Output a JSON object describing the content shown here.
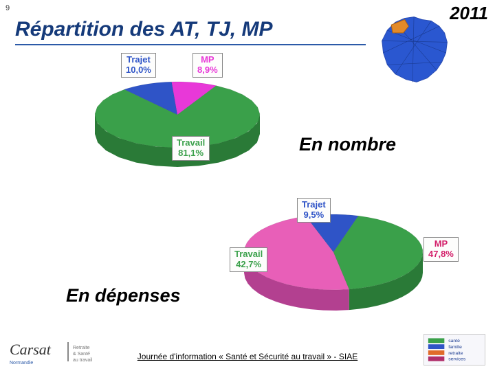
{
  "slide_number": "9",
  "year": "2011",
  "title": "Répartition des AT, TJ, MP",
  "section_labels": {
    "en_nombre": "En nombre",
    "en_depenses": "En dépenses"
  },
  "footer_text": "Journée d'information « Santé et Sécurité au travail » -  SIAE",
  "map": {
    "outline_color": "#2a4db3",
    "fill_color": "#2a57d0",
    "highlight_fill": "#e38a2a"
  },
  "chart1": {
    "type": "pie-3d",
    "title_hidden": true,
    "background_color": "#ffffff",
    "slices": [
      {
        "name": "Trajet",
        "value": 10.0,
        "label": "Trajet",
        "label2": "10,0%",
        "color": "#2f54c7",
        "text_color": "#2f54c7"
      },
      {
        "name": "MP",
        "value": 8.9,
        "label": "MP",
        "label2": "8,9%",
        "color": "#e838d8",
        "text_color": "#e838d8"
      },
      {
        "name": "Travail",
        "value": 81.1,
        "label": "Travail",
        "label2": "81,1%",
        "color": "#3aa04a",
        "text_color": "#3aa04a"
      }
    ],
    "side_color": "#2a7a37",
    "label_fontsize": 13,
    "label_border": "#888888"
  },
  "chart2": {
    "type": "pie-3d",
    "background_color": "#ffffff",
    "slices": [
      {
        "name": "Trajet",
        "value": 9.5,
        "label": "Trajet",
        "label2": "9,5%",
        "color": "#2f54c7",
        "text_color": "#2f54c7"
      },
      {
        "name": "Travail",
        "value": 42.7,
        "label": "Travail",
        "label2": "42,7%",
        "color": "#3aa04a",
        "text_color": "#3aa04a"
      },
      {
        "name": "MP",
        "value": 47.8,
        "label": "MP",
        "label2": "47,8%",
        "color": "#e85fb8",
        "text_color": "#d31f6a"
      }
    ],
    "side_color_left": "#2a7a37",
    "side_color_right": "#b34090",
    "label_fontsize": 13,
    "label_border": "#888888"
  },
  "logos": {
    "left": {
      "text1": "Carsat",
      "text2": "Retraite & Santé au travail",
      "color": "#555"
    },
    "right": {
      "bar_colors": [
        "#3aa04a",
        "#2f54c7",
        "#e06a2a",
        "#b02e6a"
      ],
      "text": "santé famille retraite services"
    }
  }
}
